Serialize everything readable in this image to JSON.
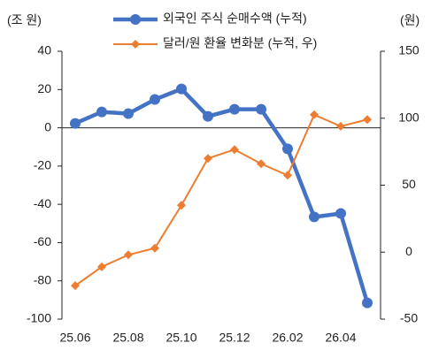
{
  "chart_data": {
    "type": "line",
    "y_unit": "(조 원)",
    "y2_unit": "(원)",
    "categories": [
      "25.06",
      null,
      "25.08",
      null,
      "25.10",
      null,
      "25.12",
      null,
      "26.02",
      null,
      "26.04",
      null
    ],
    "ylim": [
      -100,
      40
    ],
    "yticks": [
      -100,
      -80,
      -60,
      -40,
      -20,
      0,
      20,
      40
    ],
    "y2lim": [
      -50,
      150
    ],
    "y2ticks": [
      -50,
      0,
      50,
      100,
      150
    ],
    "series": [
      {
        "name": "외국인 주식 순매수액 (누적)",
        "color": "#4472c4",
        "marker": "circle",
        "values": [
          2.3,
          8.3,
          7.4,
          14.8,
          20.3,
          6,
          9.7,
          9.7,
          -11,
          -46.6,
          -44.8,
          -91.5
        ]
      },
      {
        "name": "달러/원 환율 변화분 (누적, 우)",
        "color": "#ed7d31",
        "marker": "diamond",
        "axis": "y2",
        "values": [
          -25,
          -11,
          -2,
          3,
          35,
          70,
          76.6,
          66,
          57.4,
          102.6,
          94,
          99
        ]
      }
    ]
  }
}
